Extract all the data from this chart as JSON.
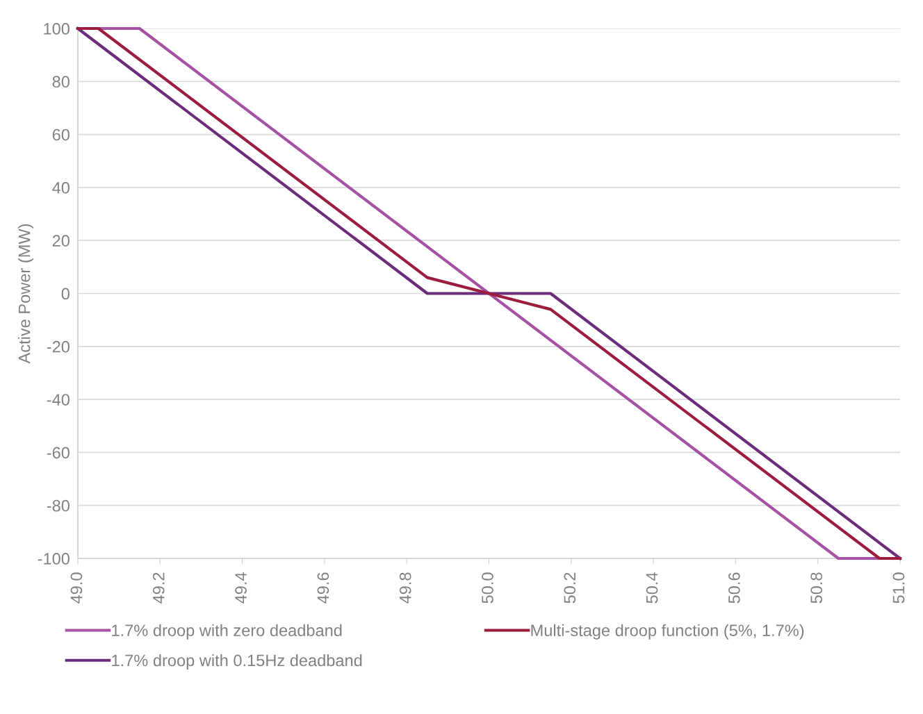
{
  "chart_data": {
    "type": "line",
    "ylabel": "Active Power (MW)",
    "xlim": [
      49.0,
      51.0
    ],
    "xticks": [
      {
        "value": 49.0,
        "label": "49.0"
      },
      {
        "value": 49.2,
        "label": "49.2"
      },
      {
        "value": 49.4,
        "label": "49.4"
      },
      {
        "value": 49.6,
        "label": "49.6"
      },
      {
        "value": 49.8,
        "label": "49.8"
      },
      {
        "value": 50.0,
        "label": "50.0"
      },
      {
        "value": 50.2,
        "label": "50.2"
      },
      {
        "value": 50.4,
        "label": "50.4"
      },
      {
        "value": 50.6,
        "label": "50.6"
      },
      {
        "value": 50.8,
        "label": "50.8"
      },
      {
        "value": 51.0,
        "label": "51.0"
      }
    ],
    "ylim": [
      -100,
      100
    ],
    "yticks": [
      -100,
      -80,
      -60,
      -40,
      -20,
      0,
      20,
      40,
      60,
      80,
      100
    ],
    "grid": "y",
    "legend": "bottom",
    "marker": "none",
    "line_style": "solid",
    "series": [
      {
        "name": "1.7% droop with zero deadband",
        "color": "#a552a5",
        "x": [
          49.0,
          49.15,
          50.85,
          51.0
        ],
        "values": [
          100,
          100,
          -100,
          -100
        ]
      },
      {
        "name": "1.7% droop with 0.15Hz deadband",
        "color": "#6b2c7c",
        "x": [
          49.0,
          49.85,
          50.15,
          51.0
        ],
        "values": [
          100,
          0,
          0,
          -100
        ]
      },
      {
        "name": "Multi-stage droop function (5%, 1.7%)",
        "color": "#9b1c3c",
        "x": [
          49.0,
          49.05,
          49.85,
          50.0,
          50.15,
          50.95,
          51.0
        ],
        "values": [
          100,
          100,
          6,
          0,
          -6,
          -100,
          -100
        ]
      }
    ]
  }
}
